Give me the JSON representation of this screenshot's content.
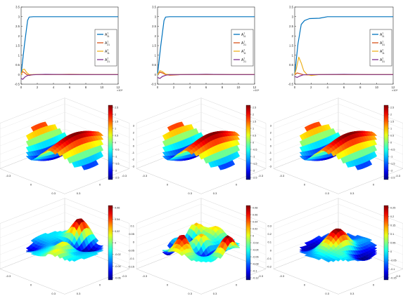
{
  "chart_data": [
    {
      "type": "line",
      "ylim": [
        -0.5,
        3.5
      ],
      "xlim": [
        0,
        12
      ],
      "xticks": [
        "0",
        "2",
        "4",
        "6",
        "8",
        "10",
        "12"
      ],
      "yticks": [
        "-0.5",
        "0",
        "0.5",
        "1",
        "1.5",
        "2",
        "2.5",
        "3",
        "3.5"
      ],
      "exponent": "×10⁴",
      "legend": {
        "position": "right-middle",
        "entries": [
          {
            "base": "A",
            "sup": "1",
            "sub": "11"
          },
          {
            "base": "A",
            "sup": "1",
            "sub": "21"
          },
          {
            "base": "A",
            "sup": "2",
            "sub": "11"
          },
          {
            "base": "A",
            "sup": "2",
            "sub": "21"
          }
        ]
      },
      "series": [
        {
          "color": "#0072BD",
          "x": [
            0,
            0.4,
            0.8,
            1.0,
            1.5,
            3,
            6,
            9,
            12
          ],
          "y": [
            0,
            1.5,
            2.8,
            2.98,
            3.0,
            3.0,
            3.0,
            3.0,
            3.0
          ]
        },
        {
          "color": "#D95319",
          "x": [
            0,
            0.2,
            0.4,
            0.7,
            1.0,
            1.5,
            3,
            6,
            9,
            12
          ],
          "y": [
            0,
            0.15,
            0.1,
            0.0,
            -0.05,
            0.0,
            0.0,
            0.01,
            0.0,
            0.0
          ]
        },
        {
          "color": "#EDB120",
          "x": [
            0,
            0.2,
            0.4,
            0.7,
            1.0,
            1.5,
            3,
            6,
            9,
            12
          ],
          "y": [
            0,
            0.25,
            0.28,
            0.1,
            0.0,
            0.0,
            0.0,
            0.0,
            0.0,
            0.0
          ]
        },
        {
          "color": "#7E2F8E",
          "x": [
            0,
            0.2,
            0.5,
            0.8,
            1.2,
            2,
            3,
            6,
            9,
            12
          ],
          "y": [
            -0.2,
            -0.25,
            -0.12,
            -0.05,
            -0.02,
            0.0,
            0.01,
            0.0,
            0.0,
            0.0
          ]
        }
      ]
    },
    {
      "type": "line",
      "ylim": [
        -0.5,
        3.5
      ],
      "xlim": [
        0,
        12
      ],
      "xticks": [
        "0",
        "2",
        "4",
        "6",
        "8",
        "10",
        "12"
      ],
      "yticks": [
        "-0.5",
        "0",
        "0.5",
        "1",
        "1.5",
        "2",
        "2.5",
        "3",
        "3.5"
      ],
      "exponent": "×10⁴",
      "legend": {
        "position": "right-middle",
        "entries": [
          {
            "base": "A",
            "sup": "1",
            "sub": "11"
          },
          {
            "base": "A",
            "sup": "1",
            "sub": "21"
          },
          {
            "base": "A",
            "sup": "2",
            "sub": "11"
          },
          {
            "base": "A",
            "sup": "2",
            "sub": "21"
          }
        ]
      },
      "series": [
        {
          "color": "#0072BD",
          "x": [
            0,
            0.4,
            0.8,
            1.0,
            1.5,
            3,
            6,
            9,
            12
          ],
          "y": [
            0,
            1.5,
            2.8,
            2.98,
            3.0,
            3.0,
            3.0,
            3.0,
            3.0
          ]
        },
        {
          "color": "#D95319",
          "x": [
            0,
            0.3,
            0.6,
            1.0,
            1.5,
            3,
            6,
            9,
            12
          ],
          "y": [
            0,
            0.12,
            0.08,
            0.0,
            -0.03,
            0.0,
            0.01,
            0.0,
            0.0
          ]
        },
        {
          "color": "#EDB120",
          "x": [
            0,
            0.3,
            0.6,
            1.0,
            1.5,
            3,
            6,
            9,
            12
          ],
          "y": [
            0,
            0.2,
            0.15,
            0.02,
            0.0,
            0.0,
            0.0,
            0.0,
            0.0
          ]
        },
        {
          "color": "#7E2F8E",
          "x": [
            0,
            0.3,
            0.6,
            1.0,
            1.5,
            3,
            6,
            9,
            12
          ],
          "y": [
            -0.15,
            -0.2,
            -0.1,
            -0.04,
            0.0,
            0.0,
            0.01,
            0.0,
            0.0
          ]
        }
      ]
    },
    {
      "type": "line",
      "ylim": [
        -0.5,
        3.5
      ],
      "xlim": [
        0,
        12
      ],
      "xticks": [
        "0",
        "2",
        "4",
        "6",
        "8",
        "10",
        "12"
      ],
      "yticks": [
        "-0.5",
        "0",
        "0.5",
        "1",
        "1.5",
        "2",
        "2.5",
        "3",
        "3.5"
      ],
      "exponent": "×10⁴",
      "legend": {
        "position": "right-middle",
        "entries": [
          {
            "base": "A",
            "sup": "1",
            "sub": "11"
          },
          {
            "base": "A",
            "sup": "1",
            "sub": "31"
          },
          {
            "base": "A",
            "sup": "2",
            "sub": "11"
          },
          {
            "base": "A",
            "sup": "2",
            "sub": "31"
          }
        ]
      },
      "series": [
        {
          "color": "#0072BD",
          "x": [
            0,
            0.4,
            0.8,
            1.2,
            1.8,
            3,
            4,
            6,
            9,
            12
          ],
          "y": [
            0,
            1.6,
            2.6,
            2.8,
            2.9,
            2.92,
            3.0,
            3.0,
            3.0,
            3.0
          ]
        },
        {
          "color": "#D95319",
          "x": [
            0,
            0.3,
            0.6,
            1.0,
            1.5,
            3,
            6,
            9,
            12
          ],
          "y": [
            0,
            0.08,
            0.05,
            0.0,
            -0.02,
            0.0,
            0.0,
            0.0,
            0.0
          ]
        },
        {
          "color": "#EDB120",
          "x": [
            0,
            0.2,
            0.5,
            0.8,
            1.1,
            1.5,
            2,
            3,
            6,
            12
          ],
          "y": [
            0,
            0.3,
            0.9,
            0.6,
            0.2,
            0.0,
            -0.05,
            0.0,
            0.0,
            0.0
          ]
        },
        {
          "color": "#7E2F8E",
          "x": [
            0,
            0.3,
            0.6,
            1.0,
            1.5,
            3,
            6,
            9,
            12
          ],
          "y": [
            -0.1,
            -0.15,
            -0.08,
            -0.02,
            0.0,
            0.0,
            0.01,
            0.0,
            0.0
          ]
        }
      ]
    },
    {
      "type": "heatmap",
      "colorbar_ticks": [
        "2.5",
        "2",
        "1.5",
        "1",
        "0.5",
        "0",
        "-0.5",
        "-1",
        "-1.5",
        "-2",
        "-2.5"
      ],
      "zticks": [
        "3",
        "2",
        "1",
        "0",
        "-1",
        "-2",
        "-3"
      ],
      "xticks": [
        "-0.3",
        "0",
        "0.3"
      ],
      "yticks": [
        "0.3",
        "0",
        "-0.3"
      ]
    },
    {
      "type": "heatmap",
      "colorbar_ticks": [
        "2.5",
        "2",
        "1.5",
        "1",
        "0.5",
        "0",
        "-0.5",
        "-1",
        "-1.5",
        "-2",
        "-2.5"
      ],
      "zticks": [
        "3",
        "2",
        "1",
        "0",
        "-1",
        "-2",
        "-3"
      ],
      "xticks": [
        "-0.3",
        "0",
        "0.3"
      ],
      "yticks": [
        "0.3",
        "0",
        "-0.3"
      ]
    },
    {
      "type": "heatmap",
      "colorbar_ticks": [
        "2.5",
        "2",
        "1.5",
        "1",
        "0.5",
        "0",
        "-0.5",
        "-1",
        "-1.5",
        "-2",
        "-2.5"
      ],
      "zticks": [
        "3",
        "2",
        "1",
        "0",
        "-1",
        "-2",
        "-3"
      ],
      "xticks": [
        "-0.3",
        "0",
        "0.3"
      ],
      "yticks": [
        "0.3",
        "0",
        "-0.3"
      ]
    },
    {
      "type": "heatmap",
      "colorbar_ticks": [
        "0.06",
        "0.04",
        "0.02",
        "0",
        "-0.02",
        "-0.04",
        "-0.06"
      ],
      "zticks": [
        "0.06",
        "0.04",
        "0.02",
        "0",
        "-0.02",
        "-0.04",
        "-0.06"
      ],
      "xticks": [
        "-0.3",
        "0",
        "0.3"
      ],
      "yticks": [
        "0.3",
        "0",
        "-0.3"
      ]
    },
    {
      "type": "heatmap",
      "colorbar_ticks": [
        "0.08",
        "0.06",
        "0.04",
        "0.02",
        "0",
        "-0.02",
        "-0.04",
        "-0.06",
        "-0.08",
        "-0.1",
        "-0.12"
      ],
      "zticks": [
        "0.1",
        "0.05",
        "0",
        "-0.05",
        "-0.1",
        "-0.15"
      ],
      "xticks": [
        "-0.3",
        "0",
        "0.3"
      ],
      "yticks": [
        "0.3",
        "0",
        "-0.3"
      ]
    },
    {
      "type": "heatmap",
      "colorbar_ticks": [
        "0.25",
        "0.2",
        "0.15",
        "0.1",
        "0.05",
        "0",
        "-0.05",
        "-0.1",
        "-0.15"
      ],
      "zticks": [
        "0.3",
        "0.2",
        "0.1",
        "0",
        "-0.1",
        "-0.2"
      ],
      "xticks": [
        "-0.3",
        "0",
        "0.3"
      ],
      "yticks": [
        "0.3",
        "0",
        "-0.3"
      ]
    }
  ]
}
